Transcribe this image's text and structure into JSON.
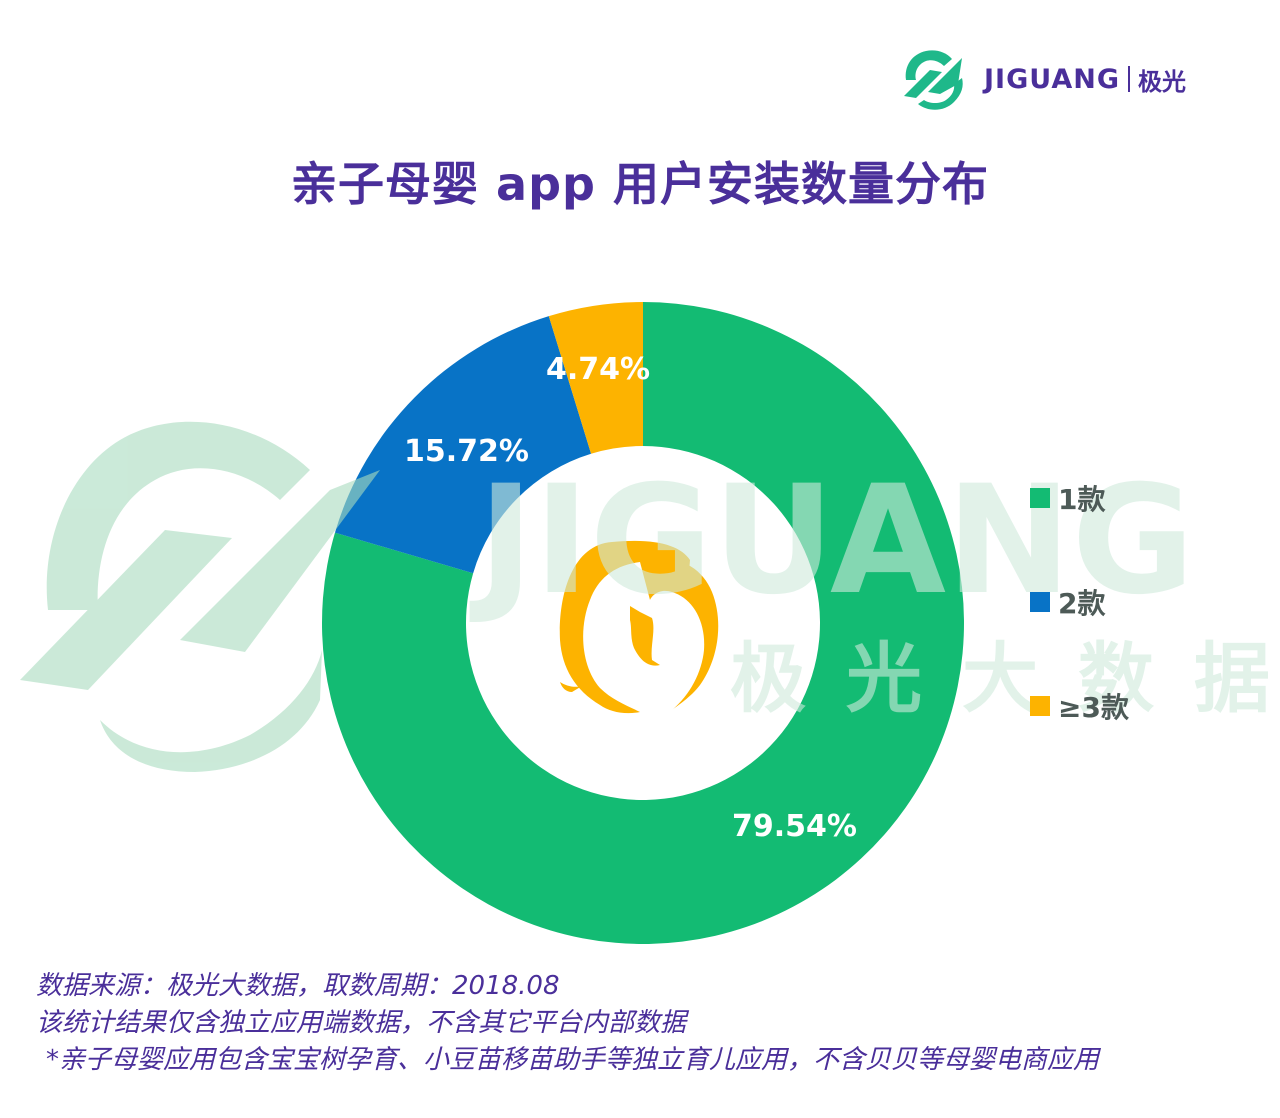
{
  "brand": {
    "name": "JIGUANG",
    "name_cn": "极光",
    "color": "#1fb88a",
    "text_color": "#4a2f9a"
  },
  "title": "亲子母婴 app 用户安装数量分布",
  "watermark": {
    "text": "JIGUANG",
    "subtext": "极光大数据",
    "color": "#cfeadc"
  },
  "chart_data": {
    "type": "pie",
    "variant": "donut",
    "title": "亲子母婴 app 用户安装数量分布",
    "categories": [
      "1款",
      "2款",
      "≥3款"
    ],
    "values": [
      79.54,
      15.72,
      4.74
    ],
    "unit": "%",
    "colors": [
      "#13bb73",
      "#0873c6",
      "#fdb300"
    ],
    "labels": [
      "79.54%",
      "15.72%",
      "4.74%"
    ],
    "start_angle": "12 o'clock",
    "direction": "clockwise",
    "legend_position": "right"
  },
  "legend": {
    "items": [
      {
        "label": "1款",
        "color": "#13bb73"
      },
      {
        "label": "2款",
        "color": "#0873c6"
      },
      {
        "label": "≥3款",
        "color": "#fdb300"
      }
    ]
  },
  "center_icon": "mother-and-baby-icon",
  "footer": {
    "source": "数据来源：极光大数据，取数周期：2018.08",
    "note1": "该统计结果仅含独立应用端数据，不含其它平台内部数据",
    "note2": "*亲子母婴应用包含宝宝树孕育、小豆苗移苗助手等独立育儿应用，不含贝贝等母婴电商应用"
  }
}
